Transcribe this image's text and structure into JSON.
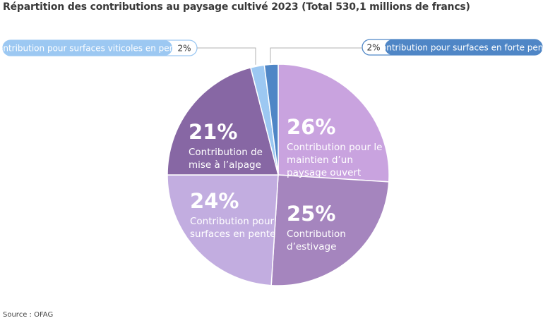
{
  "title": "Répartition des contributions au paysage cultivé  2023 (Total 530,1 millions de francs)",
  "source": "Source : OFAG",
  "chart_data": {
    "type": "pie",
    "title": "Répartition des contributions au paysage cultivé  2023 (Total 530,1 millions de francs)",
    "total_label": "Total 530,1 millions de francs",
    "slices": [
      {
        "label_lines": [
          "Contribution pour le",
          "maintien d’un",
          "paysage ouvert"
        ],
        "value": 26,
        "value_label": "26%",
        "color": "#c9a3df"
      },
      {
        "label_lines": [
          "Contribution",
          "d’estivage"
        ],
        "value": 25,
        "value_label": "25%",
        "color": "#a585be"
      },
      {
        "label_lines": [
          "Contribution pour",
          "surfaces en pente"
        ],
        "value": 24,
        "value_label": "24%",
        "color": "#c2ade0"
      },
      {
        "label_lines": [
          "Contribution de",
          "mise à l’alpage"
        ],
        "value": 21,
        "value_label": "21%",
        "color": "#8767a4"
      },
      {
        "label_lines": [
          "Contribution pour surfaces viticoles en pente"
        ],
        "value": 2,
        "value_label": "2%",
        "color": "#9cc8f2",
        "callout": "left"
      },
      {
        "label_lines": [
          "Contribution pour surfaces en forte pente"
        ],
        "value": 2,
        "value_label": "2%",
        "color": "#4f86c6",
        "callout": "right"
      }
    ]
  }
}
